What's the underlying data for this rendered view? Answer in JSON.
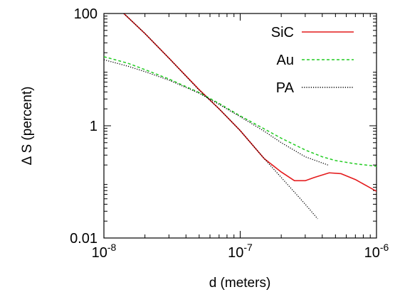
{
  "chart_data": {
    "type": "line",
    "xscale": "log",
    "yscale": "log",
    "xlim": [
      1e-08,
      1e-06
    ],
    "ylim": [
      0.01,
      100
    ],
    "xlabel": "d (meters)",
    "ylabel": "Δ S (percent)",
    "xticks": [
      {
        "value": 1e-08,
        "base": "10",
        "exp": "-8"
      },
      {
        "value": 1e-07,
        "base": "10",
        "exp": "-7"
      },
      {
        "value": 1e-06,
        "base": "10",
        "exp": "-6"
      }
    ],
    "yticks": [
      {
        "value": 0.01,
        "label": "0.01"
      },
      {
        "value": 1,
        "label": "1"
      },
      {
        "value": 100,
        "label": "100"
      }
    ],
    "grid": false,
    "legend_position": "top-right",
    "series": [
      {
        "name": "SiC",
        "color": "#e41a1c",
        "style": "solid",
        "x": [
          1.4e-08,
          2e-08,
          3e-08,
          5e-08,
          7e-08,
          1e-07,
          1.5e-07,
          2e-07,
          2.5e-07,
          3e-07,
          3.5e-07,
          4.5e-07,
          5.5e-07,
          7e-07,
          1e-06
        ],
        "y": [
          100,
          44,
          16,
          4.4,
          2.0,
          0.82,
          0.26,
          0.15,
          0.105,
          0.105,
          0.12,
          0.145,
          0.14,
          0.11,
          0.068
        ]
      },
      {
        "name": "Au",
        "color": "#22cc22",
        "style": "dashed",
        "x": [
          1e-08,
          1.5e-08,
          2e-08,
          3e-08,
          5e-08,
          7e-08,
          1e-07,
          1.5e-07,
          2e-07,
          3e-07,
          4e-07,
          5e-07,
          7e-07,
          1e-06
        ],
        "y": [
          17,
          13,
          10,
          6.8,
          3.9,
          2.5,
          1.5,
          0.88,
          0.6,
          0.37,
          0.28,
          0.24,
          0.21,
          0.19
        ]
      },
      {
        "name": "PA",
        "color": "#000000",
        "style": "dotted",
        "x_exact": [
          1e-08,
          1.5e-08,
          2e-08,
          3e-08,
          5e-08,
          7e-08,
          1e-07,
          1.5e-07,
          2e-07,
          3e-07,
          4.4e-07
        ],
        "y_exact": [
          15,
          11.5,
          9.2,
          6.5,
          3.8,
          2.4,
          1.45,
          0.8,
          0.5,
          0.28,
          0.2
        ],
        "x_asymptote": [
          1.4e-08,
          2e-08,
          3e-08,
          5e-08,
          7e-08,
          1e-07,
          1.5e-07,
          2e-07,
          3e-07,
          3.7e-07
        ],
        "y_asymptote": [
          100,
          44,
          16,
          4.3,
          2.0,
          0.82,
          0.26,
          0.12,
          0.04,
          0.022
        ]
      }
    ]
  }
}
